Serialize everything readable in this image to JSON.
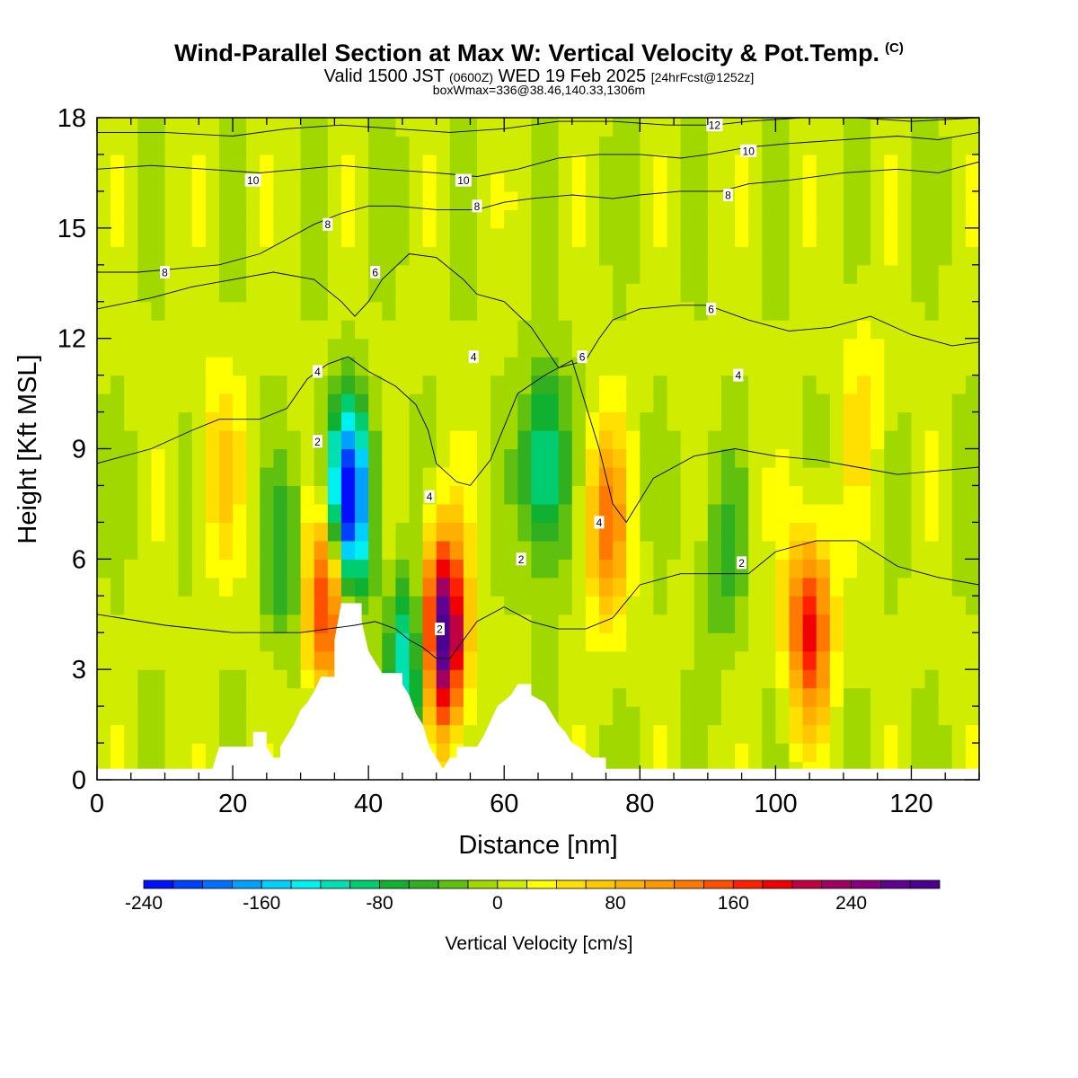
{
  "header": {
    "title": "Wind-Parallel Section at Max W: Vertical Velocity & Pot.Temp.",
    "title_mark": "(C)",
    "valid_prefix": "Valid 1500 JST",
    "valid_zulu": "(0600Z)",
    "valid_date": "WED 19 Feb 2025",
    "forecast_info": "[24hrFcst@1252z]",
    "box_info": "boxWmax=336@38.46,140.33,1306m"
  },
  "chart_data": {
    "type": "heatmap",
    "xlabel": "Distance [nm]",
    "ylabel": "Height [Kft MSL]",
    "xlim": [
      0,
      130
    ],
    "ylim": [
      0,
      18
    ],
    "xticks": [
      0,
      20,
      40,
      60,
      80,
      100,
      120
    ],
    "yticks": [
      0,
      3,
      6,
      9,
      12,
      15,
      18
    ],
    "colorbar": {
      "label": "Vertical Velocity [cm/s]",
      "range": [
        -240,
        300
      ],
      "step": 20,
      "tick_values": [
        -240,
        -160,
        -80,
        0,
        80,
        160,
        240
      ],
      "tick_labels": [
        "-240",
        "-160",
        "-80",
        "0",
        "80",
        "160",
        "240"
      ],
      "colors": [
        "#0010ff",
        "#0040ff",
        "#0070ff",
        "#00a0ff",
        "#00d0ff",
        "#00f0f0",
        "#00e0b0",
        "#00cc70",
        "#10b030",
        "#30b020",
        "#60c010",
        "#a0d800",
        "#d0ec00",
        "#ffff00",
        "#ffe000",
        "#ffc800",
        "#ffb000",
        "#ff9800",
        "#ff7800",
        "#ff5000",
        "#ff2000",
        "#f00000",
        "#c00040",
        "#a00060",
        "#880080",
        "#600090",
        "#4b0090"
      ]
    },
    "terrain": [
      [
        0,
        0.3
      ],
      [
        17,
        0.3
      ],
      [
        17.5,
        0.6
      ],
      [
        18,
        0.9
      ],
      [
        23,
        0.9
      ],
      [
        23,
        1.3
      ],
      [
        25,
        1.3
      ],
      [
        25,
        0.9
      ],
      [
        26,
        0.6
      ],
      [
        27,
        0.6
      ],
      [
        27,
        0.9
      ],
      [
        28,
        1.2
      ],
      [
        29,
        1.5
      ],
      [
        30,
        1.9
      ],
      [
        31,
        2.1
      ],
      [
        32,
        2.4
      ],
      [
        33,
        2.8
      ],
      [
        35,
        2.8
      ],
      [
        35,
        3.8
      ],
      [
        36,
        4.8
      ],
      [
        39,
        4.8
      ],
      [
        39,
        4.3
      ],
      [
        40,
        3.5
      ],
      [
        41,
        3.2
      ],
      [
        42,
        2.9
      ],
      [
        45,
        2.9
      ],
      [
        45,
        2.6
      ],
      [
        46,
        2.3
      ],
      [
        47,
        1.8
      ],
      [
        48,
        1.5
      ],
      [
        49,
        0.9
      ],
      [
        50,
        0.6
      ],
      [
        51,
        0.3
      ],
      [
        52,
        0.6
      ],
      [
        53,
        0.6
      ],
      [
        53,
        0.9
      ],
      [
        56,
        0.9
      ],
      [
        57,
        1.2
      ],
      [
        58,
        1.6
      ],
      [
        59,
        2.0
      ],
      [
        61,
        2.3
      ],
      [
        62,
        2.6
      ],
      [
        64,
        2.6
      ],
      [
        64,
        2.3
      ],
      [
        66,
        2.1
      ],
      [
        67,
        1.8
      ],
      [
        68,
        1.5
      ],
      [
        69,
        1.3
      ],
      [
        70,
        1.0
      ],
      [
        71,
        0.9
      ],
      [
        73,
        0.6
      ],
      [
        75,
        0.6
      ],
      [
        75,
        0.3
      ],
      [
        130,
        0.3
      ]
    ],
    "w_features": [
      {
        "x": 37,
        "z": 7.5,
        "w": -260
      },
      {
        "x": 46,
        "z": 3.0,
        "w": -140
      },
      {
        "x": 51,
        "z": 4.0,
        "w": 300
      },
      {
        "x": 34,
        "z": 5.0,
        "w": 190
      },
      {
        "x": 66,
        "z": 8.5,
        "w": -130
      },
      {
        "x": 75,
        "z": 7.0,
        "w": 120
      },
      {
        "x": 105,
        "z": 4.2,
        "w": 180
      },
      {
        "x": 92,
        "z": 6.0,
        "w": -50
      },
      {
        "x": 113,
        "z": 10.0,
        "w": 40
      },
      {
        "x": 18,
        "z": 8.5,
        "w": 60
      },
      {
        "x": 28,
        "z": 6.0,
        "w": -60
      }
    ],
    "theta_contours": [
      {
        "label": "2",
        "points": [
          [
            0,
            4.5
          ],
          [
            10,
            4.2
          ],
          [
            20,
            4.0
          ],
          [
            30,
            4.0
          ],
          [
            34,
            4.1
          ],
          [
            38,
            4.2
          ],
          [
            41,
            4.3
          ],
          [
            44,
            4.1
          ],
          [
            46,
            3.8
          ],
          [
            48,
            3.6
          ],
          [
            50,
            3.3
          ],
          [
            52,
            3.3
          ],
          [
            56,
            4.3
          ],
          [
            60,
            4.7
          ],
          [
            64,
            4.3
          ],
          [
            68,
            4.1
          ],
          [
            72,
            4.1
          ],
          [
            76,
            4.4
          ],
          [
            80,
            5.3
          ],
          [
            86,
            5.6
          ],
          [
            92,
            5.6
          ],
          [
            96,
            5.6
          ],
          [
            100,
            6.2
          ],
          [
            106,
            6.5
          ],
          [
            112,
            6.5
          ],
          [
            118,
            5.8
          ],
          [
            124,
            5.5
          ],
          [
            130,
            5.3
          ]
        ],
        "label_at": [
          [
            32.5,
            9.2
          ],
          [
            50.5,
            4.1
          ],
          [
            62.5,
            6.0
          ],
          [
            95,
            5.9
          ]
        ]
      },
      {
        "label": "4",
        "points": [
          [
            0,
            8.6
          ],
          [
            8,
            9.0
          ],
          [
            14,
            9.5
          ],
          [
            18,
            9.8
          ],
          [
            24,
            9.8
          ],
          [
            28,
            10.1
          ],
          [
            31,
            10.9
          ],
          [
            34,
            11.3
          ],
          [
            37,
            11.5
          ],
          [
            40,
            11.1
          ],
          [
            44,
            10.7
          ],
          [
            47,
            10.2
          ],
          [
            48.8,
            9.5
          ],
          [
            50,
            8.6
          ],
          [
            53,
            8.1
          ],
          [
            55,
            8.0
          ],
          [
            58,
            8.7
          ],
          [
            62,
            10.5
          ],
          [
            66,
            11.0
          ],
          [
            70,
            11.4
          ],
          [
            74,
            9.0
          ],
          [
            76,
            7.5
          ],
          [
            78,
            7.0
          ],
          [
            82,
            8.2
          ],
          [
            88,
            8.8
          ],
          [
            94,
            9.0
          ],
          [
            100,
            8.8
          ],
          [
            106,
            8.7
          ],
          [
            112,
            8.5
          ],
          [
            118,
            8.3
          ],
          [
            124,
            8.4
          ],
          [
            130,
            8.5
          ]
        ],
        "label_at": [
          [
            32.5,
            11.1
          ],
          [
            49,
            7.7
          ],
          [
            55.5,
            11.5
          ],
          [
            74,
            7.0
          ],
          [
            94.5,
            11.0
          ]
        ]
      },
      {
        "label": "6",
        "points": [
          [
            0,
            12.8
          ],
          [
            8,
            13.1
          ],
          [
            14,
            13.4
          ],
          [
            20,
            13.6
          ],
          [
            26,
            13.8
          ],
          [
            32,
            13.6
          ],
          [
            36,
            13.0
          ],
          [
            38,
            12.6
          ],
          [
            40,
            13.0
          ],
          [
            42,
            13.6
          ],
          [
            46,
            14.3
          ],
          [
            50,
            14.2
          ],
          [
            54,
            13.6
          ],
          [
            56,
            13.2
          ],
          [
            60,
            13.0
          ],
          [
            64,
            12.3
          ],
          [
            68,
            11.2
          ],
          [
            72,
            11.4
          ],
          [
            74,
            12.0
          ],
          [
            76,
            12.5
          ],
          [
            80,
            12.8
          ],
          [
            86,
            12.9
          ],
          [
            90,
            12.9
          ],
          [
            96,
            12.5
          ],
          [
            102,
            12.2
          ],
          [
            108,
            12.3
          ],
          [
            114,
            12.6
          ],
          [
            120,
            12.1
          ],
          [
            126,
            11.8
          ],
          [
            130,
            11.9
          ]
        ],
        "label_at": [
          [
            41,
            13.8
          ],
          [
            71.5,
            11.5
          ],
          [
            90.5,
            12.8
          ]
        ]
      },
      {
        "label": "8",
        "points": [
          [
            0,
            13.8
          ],
          [
            6,
            13.8
          ],
          [
            12,
            13.9
          ],
          [
            18,
            14.0
          ],
          [
            24,
            14.3
          ],
          [
            28,
            14.7
          ],
          [
            32,
            15.1
          ],
          [
            36,
            15.4
          ],
          [
            40,
            15.6
          ],
          [
            44,
            15.6
          ],
          [
            50,
            15.5
          ],
          [
            56,
            15.5
          ],
          [
            60,
            15.7
          ],
          [
            64,
            15.8
          ],
          [
            70,
            15.9
          ],
          [
            76,
            15.8
          ],
          [
            80,
            15.9
          ],
          [
            86,
            16.0
          ],
          [
            92,
            16.0
          ],
          [
            96,
            16.2
          ],
          [
            102,
            16.3
          ],
          [
            110,
            16.5
          ],
          [
            118,
            16.6
          ],
          [
            124,
            16.5
          ],
          [
            130,
            16.8
          ]
        ],
        "label_at": [
          [
            10,
            13.8
          ],
          [
            34,
            15.1
          ],
          [
            56,
            15.6
          ],
          [
            93,
            15.9
          ]
        ]
      },
      {
        "label": "10",
        "points": [
          [
            0,
            16.6
          ],
          [
            8,
            16.7
          ],
          [
            16,
            16.6
          ],
          [
            24,
            16.5
          ],
          [
            30,
            16.6
          ],
          [
            36,
            16.7
          ],
          [
            42,
            16.6
          ],
          [
            50,
            16.5
          ],
          [
            56,
            16.4
          ],
          [
            62,
            16.6
          ],
          [
            68,
            16.9
          ],
          [
            74,
            17.0
          ],
          [
            80,
            17.0
          ],
          [
            86,
            16.9
          ],
          [
            90,
            17.0
          ],
          [
            96,
            17.2
          ],
          [
            102,
            17.3
          ],
          [
            110,
            17.4
          ],
          [
            118,
            17.5
          ],
          [
            124,
            17.4
          ],
          [
            130,
            17.6
          ]
        ],
        "label_at": [
          [
            23,
            16.3
          ],
          [
            54,
            16.3
          ],
          [
            96,
            17.1
          ]
        ]
      },
      {
        "label": "12",
        "points": [
          [
            0,
            17.6
          ],
          [
            10,
            17.6
          ],
          [
            20,
            17.5
          ],
          [
            28,
            17.7
          ],
          [
            36,
            17.8
          ],
          [
            44,
            17.7
          ],
          [
            52,
            17.6
          ],
          [
            60,
            17.7
          ],
          [
            68,
            17.9
          ],
          [
            76,
            17.9
          ],
          [
            84,
            17.8
          ],
          [
            91,
            17.8
          ],
          [
            96,
            17.9
          ],
          [
            104,
            18.0
          ],
          [
            112,
            18.0
          ],
          [
            120,
            17.9
          ],
          [
            130,
            18.0
          ]
        ],
        "label_at": [
          [
            91,
            17.8
          ]
        ]
      }
    ]
  }
}
